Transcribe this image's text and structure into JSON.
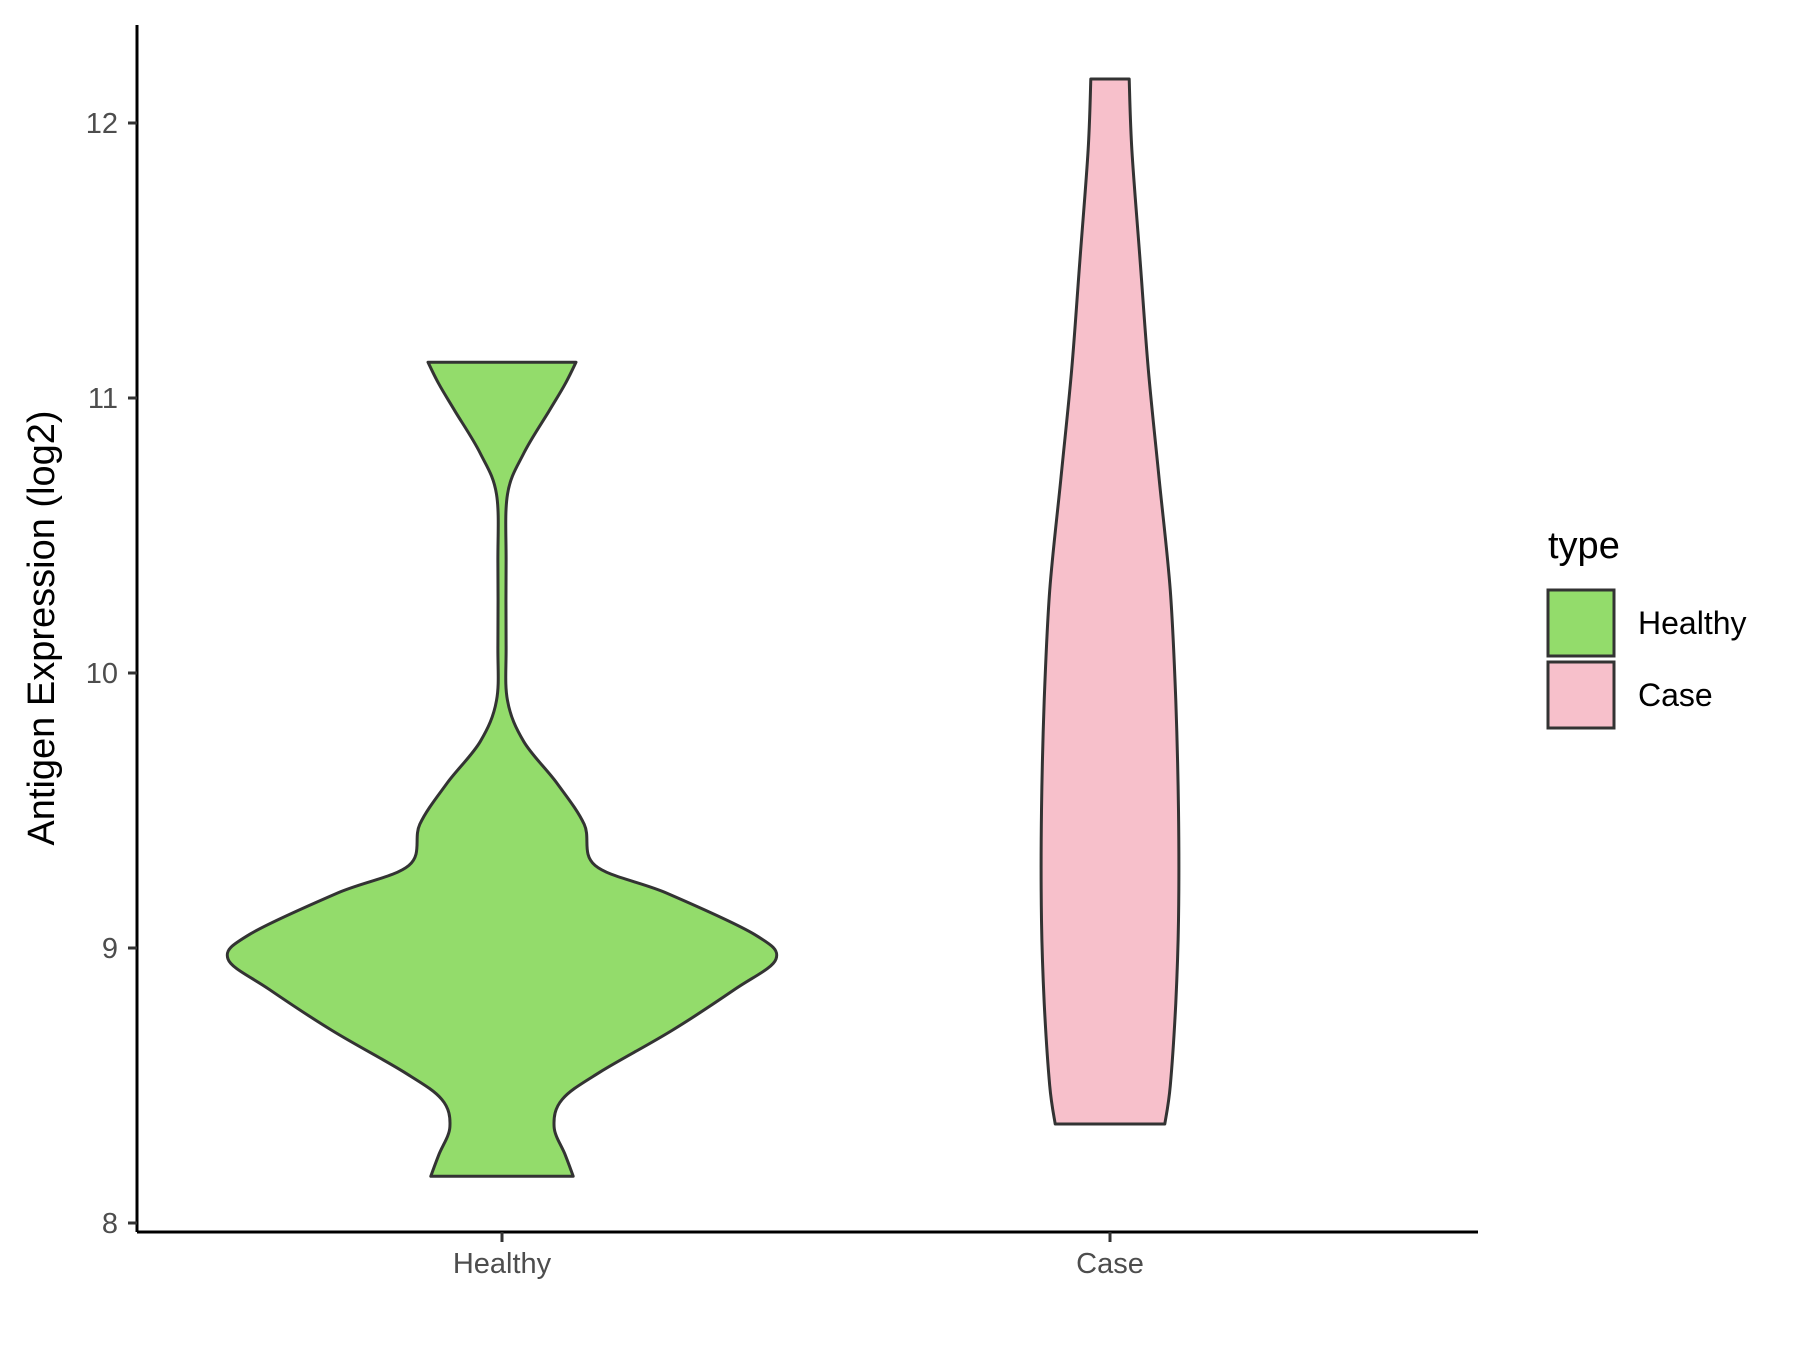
{
  "chart_data": {
    "type": "violin",
    "title": "",
    "xlabel": "",
    "ylabel": "Antigen Expression (log2)",
    "ylim": [
      7.98,
      12.35
    ],
    "yticks": [
      "8",
      "9",
      "10",
      "11",
      "12"
    ],
    "categories": [
      "Healthy",
      "Case"
    ],
    "legend": {
      "title": "type",
      "position": "right",
      "entries": [
        {
          "label": "Healthy",
          "color": "#93dc6b"
        },
        {
          "label": "Case",
          "color": "#f7c0cb"
        }
      ]
    },
    "grid": false,
    "series": [
      {
        "name": "Healthy",
        "color": "#93dc6b",
        "ymin": 8.17,
        "ymax": 11.13,
        "density_profile": [
          [
            8.17,
            0.26
          ],
          [
            8.25,
            0.23
          ],
          [
            8.35,
            0.19
          ],
          [
            8.45,
            0.22
          ],
          [
            8.55,
            0.36
          ],
          [
            8.7,
            0.62
          ],
          [
            8.85,
            0.85
          ],
          [
            8.96,
            1.0
          ],
          [
            9.05,
            0.92
          ],
          [
            9.2,
            0.6
          ],
          [
            9.3,
            0.34
          ],
          [
            9.45,
            0.3
          ],
          [
            9.6,
            0.2
          ],
          [
            9.75,
            0.08
          ],
          [
            9.9,
            0.02
          ],
          [
            10.1,
            0.015
          ],
          [
            10.4,
            0.015
          ],
          [
            10.65,
            0.02
          ],
          [
            10.8,
            0.08
          ],
          [
            10.95,
            0.17
          ],
          [
            11.05,
            0.23
          ],
          [
            11.13,
            0.27
          ]
        ]
      },
      {
        "name": "Case",
        "color": "#f7c0cb",
        "ymin": 8.36,
        "ymax": 12.16,
        "density_profile": [
          [
            8.36,
            0.2
          ],
          [
            8.5,
            0.22
          ],
          [
            8.8,
            0.24
          ],
          [
            9.1,
            0.25
          ],
          [
            9.5,
            0.25
          ],
          [
            9.9,
            0.24
          ],
          [
            10.3,
            0.22
          ],
          [
            10.7,
            0.18
          ],
          [
            11.1,
            0.14
          ],
          [
            11.5,
            0.11
          ],
          [
            11.9,
            0.08
          ],
          [
            12.16,
            0.07
          ]
        ]
      }
    ]
  }
}
